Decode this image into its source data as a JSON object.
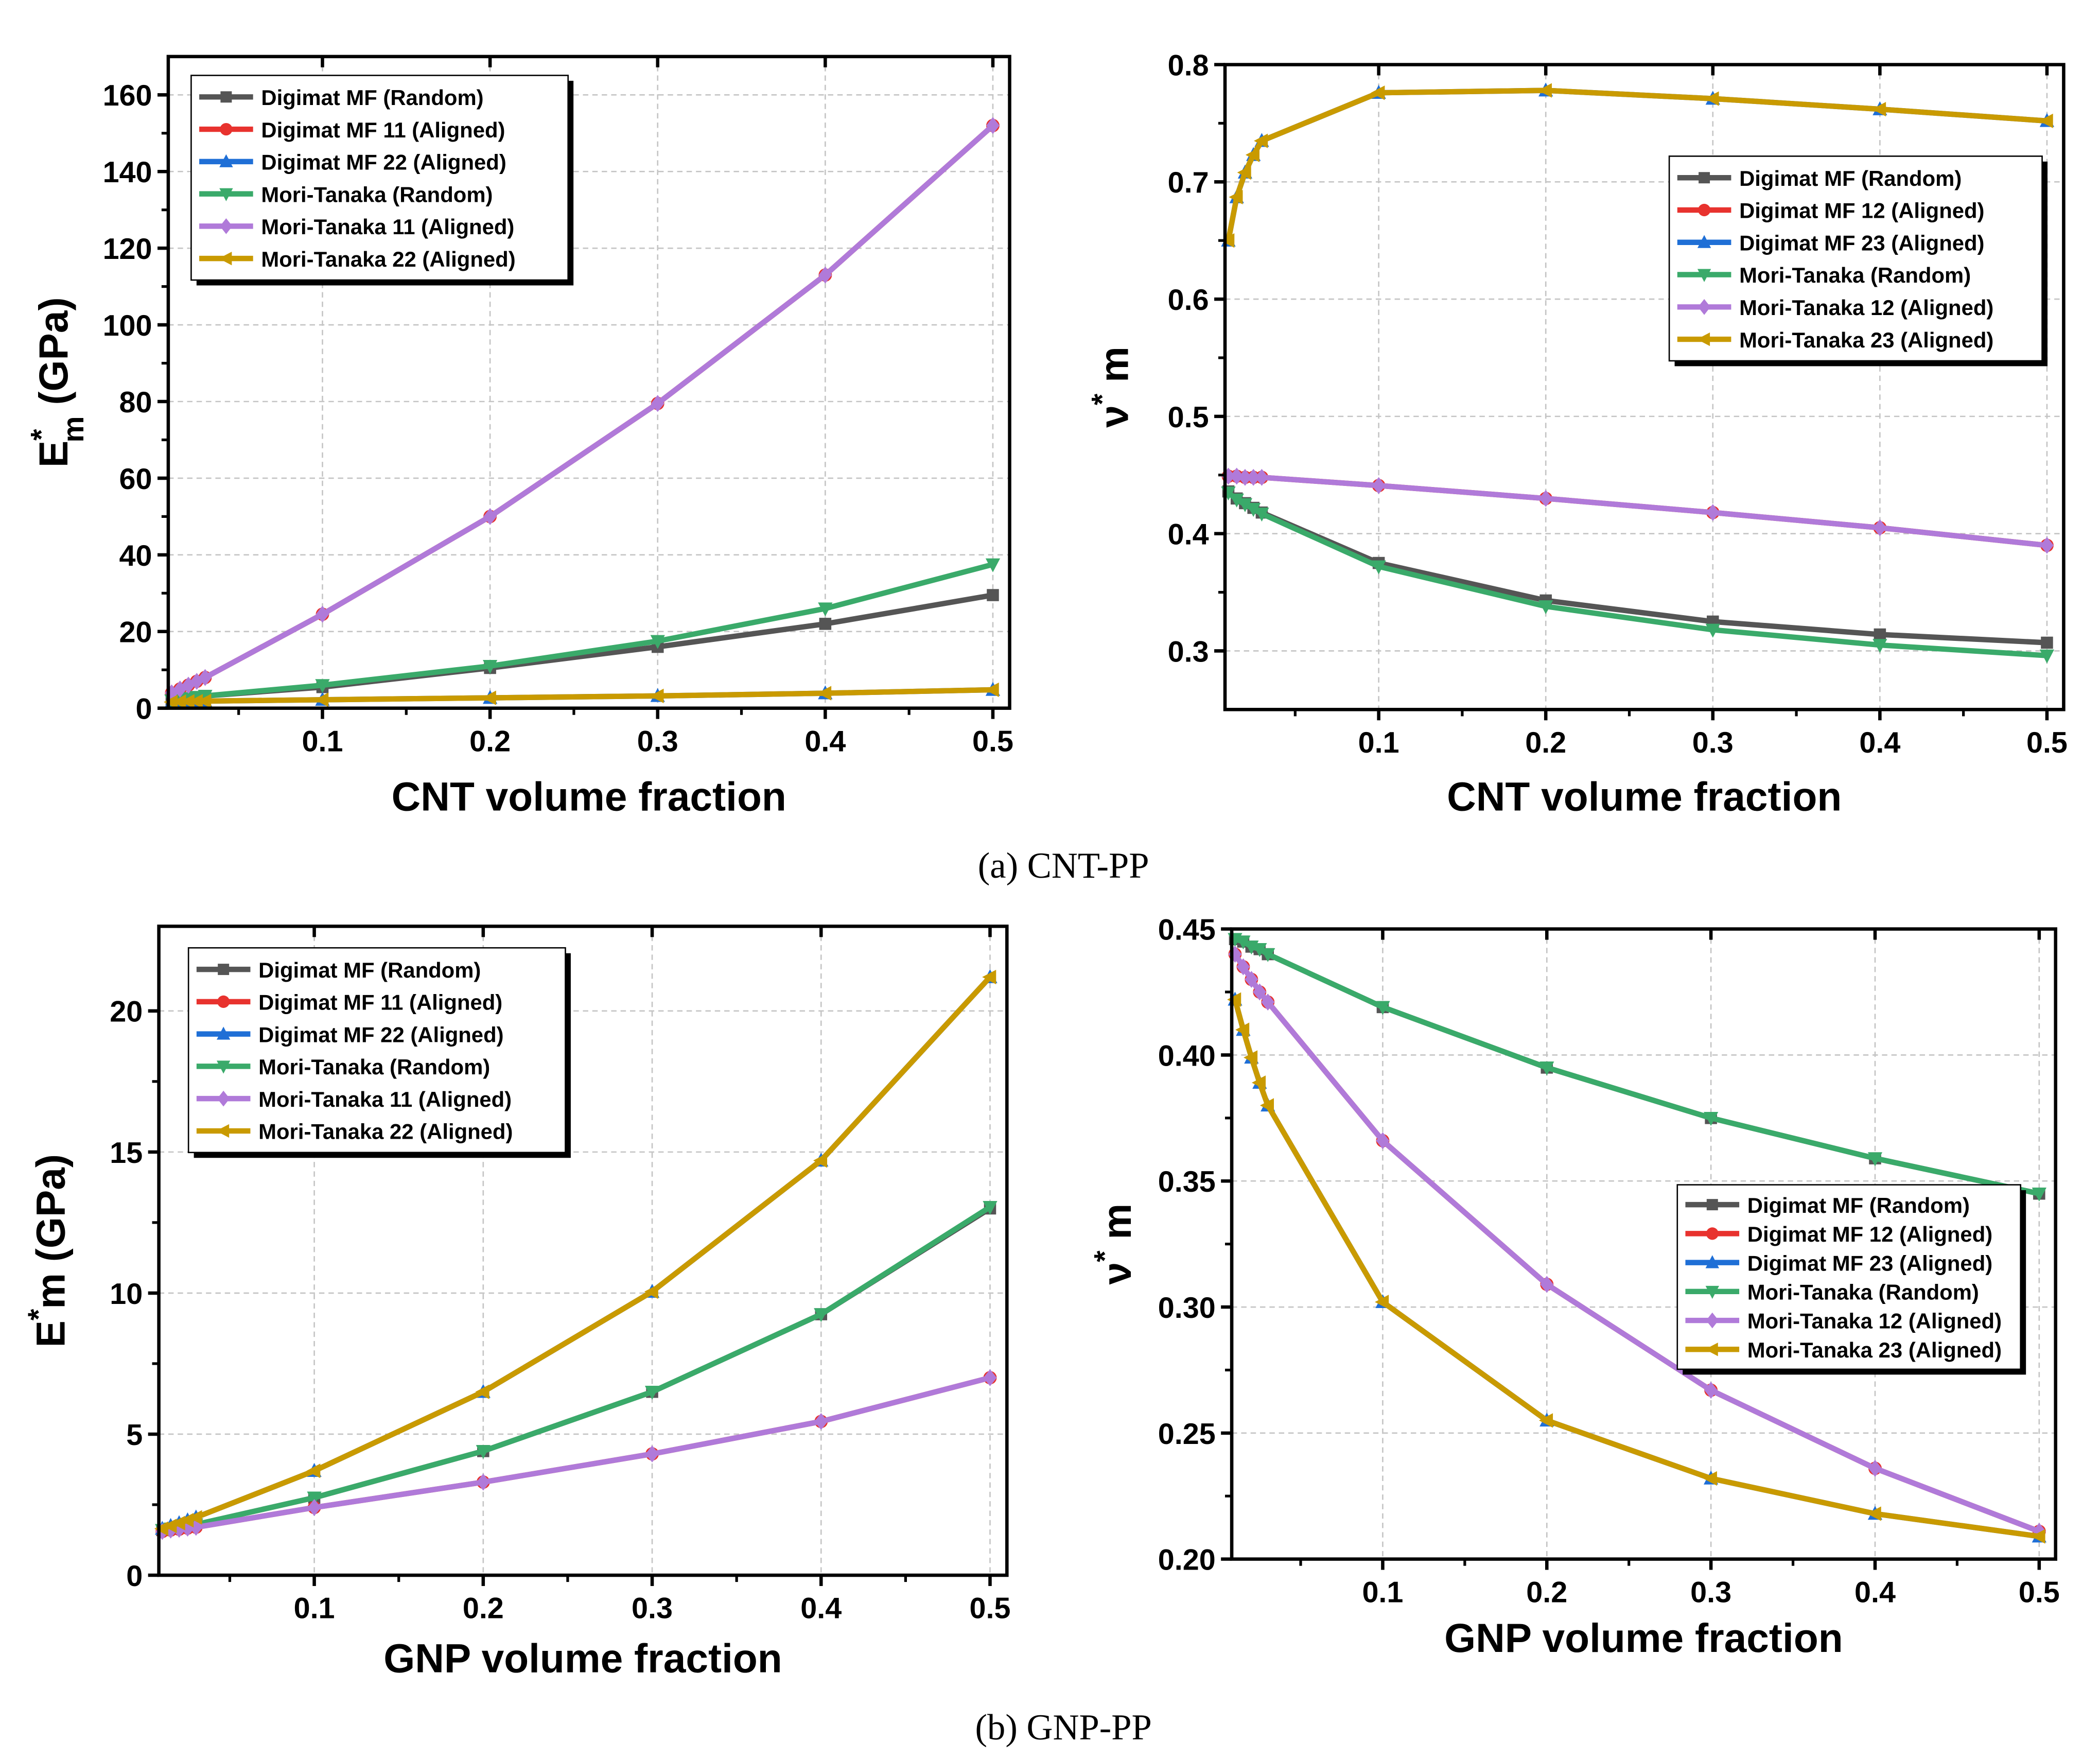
{
  "captions": {
    "a": "(a) CNT-PP",
    "b": "(b) GNP-PP"
  },
  "series_style": {
    "colors": [
      "#555555",
      "#e8322e",
      "#1f6fd6",
      "#3aaa6a",
      "#b07ad9",
      "#c99a00"
    ],
    "markers": [
      "square",
      "circle",
      "triangle-up",
      "triangle-down",
      "diamond",
      "triangle-left"
    ]
  },
  "chart_data": [
    {
      "type": "line",
      "id": "cnt-modulus",
      "xlabel": "CNT volume fraction",
      "ylabel": {
        "main": "E",
        "sup": "*",
        "sub": "m",
        "unit": " (GPa)"
      },
      "xlim": [
        0.008,
        0.51
      ],
      "ylim": [
        0,
        170
      ],
      "xticks": [
        0.1,
        0.2,
        0.3,
        0.4,
        0.5
      ],
      "xtick_labels": [
        "0.1",
        "0.2",
        "0.3",
        "0.4",
        "0.5"
      ],
      "yticks": [
        0,
        20,
        40,
        60,
        80,
        100,
        120,
        140,
        160
      ],
      "ytick_labels": [
        "0",
        "20",
        "40",
        "60",
        "80",
        "100",
        "120",
        "140",
        "160"
      ],
      "grid": true,
      "legend_position": "top-left",
      "x": [
        0.01,
        0.015,
        0.02,
        0.025,
        0.03,
        0.1,
        0.2,
        0.3,
        0.4,
        0.5
      ],
      "series": [
        {
          "name": "Digimat MF (Random)",
          "values": [
            2.0,
            2.3,
            2.6,
            2.9,
            3.2,
            5.5,
            10.5,
            16.0,
            22.0,
            29.5
          ]
        },
        {
          "name": "Digimat MF 11 (Aligned)",
          "values": [
            4.0,
            5.0,
            6.0,
            7.0,
            8.0,
            24.5,
            50.0,
            79.5,
            113.0,
            152.0
          ]
        },
        {
          "name": "Digimat MF 22 (Aligned)",
          "values": [
            1.6,
            1.7,
            1.75,
            1.8,
            1.85,
            2.2,
            2.7,
            3.2,
            3.9,
            4.8
          ]
        },
        {
          "name": "Mori-Tanaka (Random)",
          "values": [
            2.0,
            2.3,
            2.6,
            2.9,
            3.2,
            6.0,
            11.0,
            17.5,
            26.0,
            37.5
          ]
        },
        {
          "name": "Mori-Tanaka 11 (Aligned)",
          "values": [
            4.0,
            5.0,
            6.0,
            7.0,
            8.0,
            24.5,
            50.0,
            79.5,
            113.0,
            152.0
          ]
        },
        {
          "name": "Mori-Tanaka 22 (Aligned)",
          "values": [
            1.6,
            1.7,
            1.75,
            1.8,
            1.85,
            2.2,
            2.7,
            3.2,
            3.9,
            4.8
          ]
        }
      ]
    },
    {
      "type": "line",
      "id": "cnt-poisson",
      "xlabel": "CNT volume fraction",
      "ylabel": {
        "main": "ν",
        "sup": "*",
        "sub": "",
        "unit": " m"
      },
      "xlim": [
        0.008,
        0.51
      ],
      "ylim": [
        0.25,
        0.8
      ],
      "xticks": [
        0.1,
        0.2,
        0.3,
        0.4,
        0.5
      ],
      "xtick_labels": [
        "0.1",
        "0.2",
        "0.3",
        "0.4",
        "0.5"
      ],
      "yticks": [
        0.3,
        0.4,
        0.5,
        0.6,
        0.7,
        0.8
      ],
      "ytick_labels": [
        "0.3",
        "0.4",
        "0.5",
        "0.6",
        "0.7",
        "0.8"
      ],
      "grid": true,
      "legend_position": "top-right",
      "x": [
        0.01,
        0.015,
        0.02,
        0.025,
        0.03,
        0.1,
        0.2,
        0.3,
        0.4,
        0.5
      ],
      "series": [
        {
          "name": "Digimat MF (Random)",
          "values": [
            0.436,
            0.43,
            0.426,
            0.422,
            0.418,
            0.375,
            0.343,
            0.325,
            0.314,
            0.307
          ]
        },
        {
          "name": "Digimat MF 12 (Aligned)",
          "values": [
            0.449,
            0.449,
            0.448,
            0.448,
            0.448,
            0.441,
            0.43,
            0.418,
            0.405,
            0.39
          ]
        },
        {
          "name": "Digimat MF 23 (Aligned)",
          "values": [
            0.65,
            0.687,
            0.708,
            0.723,
            0.735,
            0.776,
            0.778,
            0.771,
            0.762,
            0.752
          ]
        },
        {
          "name": "Mori-Tanaka (Random)",
          "values": [
            0.435,
            0.429,
            0.425,
            0.421,
            0.417,
            0.372,
            0.338,
            0.318,
            0.305,
            0.296
          ]
        },
        {
          "name": "Mori-Tanaka 12 (Aligned)",
          "values": [
            0.449,
            0.449,
            0.448,
            0.448,
            0.448,
            0.441,
            0.43,
            0.418,
            0.405,
            0.39
          ]
        },
        {
          "name": "Mori-Tanaka 23 (Aligned)",
          "values": [
            0.65,
            0.687,
            0.708,
            0.723,
            0.735,
            0.776,
            0.778,
            0.771,
            0.762,
            0.752
          ]
        }
      ]
    },
    {
      "type": "line",
      "id": "gnp-modulus",
      "xlabel": "GNP volume fraction",
      "ylabel": {
        "main": "E",
        "sup": "*",
        "sub": "",
        "unit": "m (GPa)"
      },
      "xlim": [
        0.008,
        0.51
      ],
      "ylim": [
        0,
        23
      ],
      "xticks": [
        0.1,
        0.2,
        0.3,
        0.4,
        0.5
      ],
      "xtick_labels": [
        "0.1",
        "0.2",
        "0.3",
        "0.4",
        "0.5"
      ],
      "yticks": [
        0,
        5,
        10,
        15,
        20
      ],
      "ytick_labels": [
        "0",
        "5",
        "10",
        "15",
        "20"
      ],
      "grid": true,
      "legend_position": "top-left",
      "x": [
        0.01,
        0.015,
        0.02,
        0.025,
        0.03,
        0.1,
        0.2,
        0.3,
        0.4,
        0.5
      ],
      "series": [
        {
          "name": "Digimat MF (Random)",
          "values": [
            1.6,
            1.65,
            1.7,
            1.75,
            1.8,
            2.75,
            4.4,
            6.5,
            9.25,
            13.0
          ]
        },
        {
          "name": "Digimat MF 11 (Aligned)",
          "values": [
            1.55,
            1.6,
            1.63,
            1.67,
            1.7,
            2.4,
            3.3,
            4.3,
            5.45,
            7.0
          ]
        },
        {
          "name": "Digimat MF 22 (Aligned)",
          "values": [
            1.65,
            1.75,
            1.85,
            1.95,
            2.05,
            3.7,
            6.5,
            10.05,
            14.7,
            21.2
          ]
        },
        {
          "name": "Mori-Tanaka (Random)",
          "values": [
            1.6,
            1.65,
            1.7,
            1.75,
            1.8,
            2.75,
            4.4,
            6.5,
            9.25,
            13.05
          ]
        },
        {
          "name": "Mori-Tanaka 11 (Aligned)",
          "values": [
            1.55,
            1.6,
            1.63,
            1.67,
            1.7,
            2.4,
            3.3,
            4.3,
            5.45,
            7.0
          ]
        },
        {
          "name": "Mori-Tanaka 22 (Aligned)",
          "values": [
            1.65,
            1.75,
            1.85,
            1.95,
            2.05,
            3.7,
            6.5,
            10.05,
            14.7,
            21.2
          ]
        }
      ]
    },
    {
      "type": "line",
      "id": "gnp-poisson",
      "xlabel": "GNP volume fraction",
      "ylabel": {
        "main": "ν",
        "sup": "*",
        "sub": "",
        "unit": " m"
      },
      "xlim": [
        0.008,
        0.51
      ],
      "ylim": [
        0.2,
        0.45
      ],
      "xticks": [
        0.1,
        0.2,
        0.3,
        0.4,
        0.5
      ],
      "xtick_labels": [
        "0.1",
        "0.2",
        "0.3",
        "0.4",
        "0.5"
      ],
      "yticks": [
        0.2,
        0.25,
        0.3,
        0.35,
        0.4,
        0.45
      ],
      "ytick_labels": [
        "0.20",
        "0.25",
        "0.30",
        "0.35",
        "0.40",
        "0.45"
      ],
      "grid": true,
      "legend_position": "center-right",
      "x": [
        0.01,
        0.015,
        0.02,
        0.025,
        0.03,
        0.1,
        0.2,
        0.3,
        0.4,
        0.5
      ],
      "series": [
        {
          "name": "Digimat MF (Random)",
          "values": [
            0.446,
            0.445,
            0.443,
            0.442,
            0.44,
            0.419,
            0.395,
            0.375,
            0.359,
            0.345
          ]
        },
        {
          "name": "Digimat MF 12 (Aligned)",
          "values": [
            0.44,
            0.435,
            0.43,
            0.425,
            0.421,
            0.366,
            0.309,
            0.267,
            0.236,
            0.211
          ]
        },
        {
          "name": "Digimat MF 23 (Aligned)",
          "values": [
            0.422,
            0.41,
            0.399,
            0.389,
            0.38,
            0.302,
            0.255,
            0.232,
            0.218,
            0.209
          ]
        },
        {
          "name": "Mori-Tanaka (Random)",
          "values": [
            0.446,
            0.445,
            0.443,
            0.442,
            0.44,
            0.419,
            0.395,
            0.375,
            0.359,
            0.345
          ]
        },
        {
          "name": "Mori-Tanaka 12 (Aligned)",
          "values": [
            0.44,
            0.435,
            0.43,
            0.425,
            0.421,
            0.366,
            0.309,
            0.267,
            0.236,
            0.211
          ]
        },
        {
          "name": "Mori-Tanaka 23 (Aligned)",
          "values": [
            0.422,
            0.41,
            0.399,
            0.389,
            0.38,
            0.302,
            0.255,
            0.232,
            0.218,
            0.209
          ]
        }
      ]
    }
  ]
}
